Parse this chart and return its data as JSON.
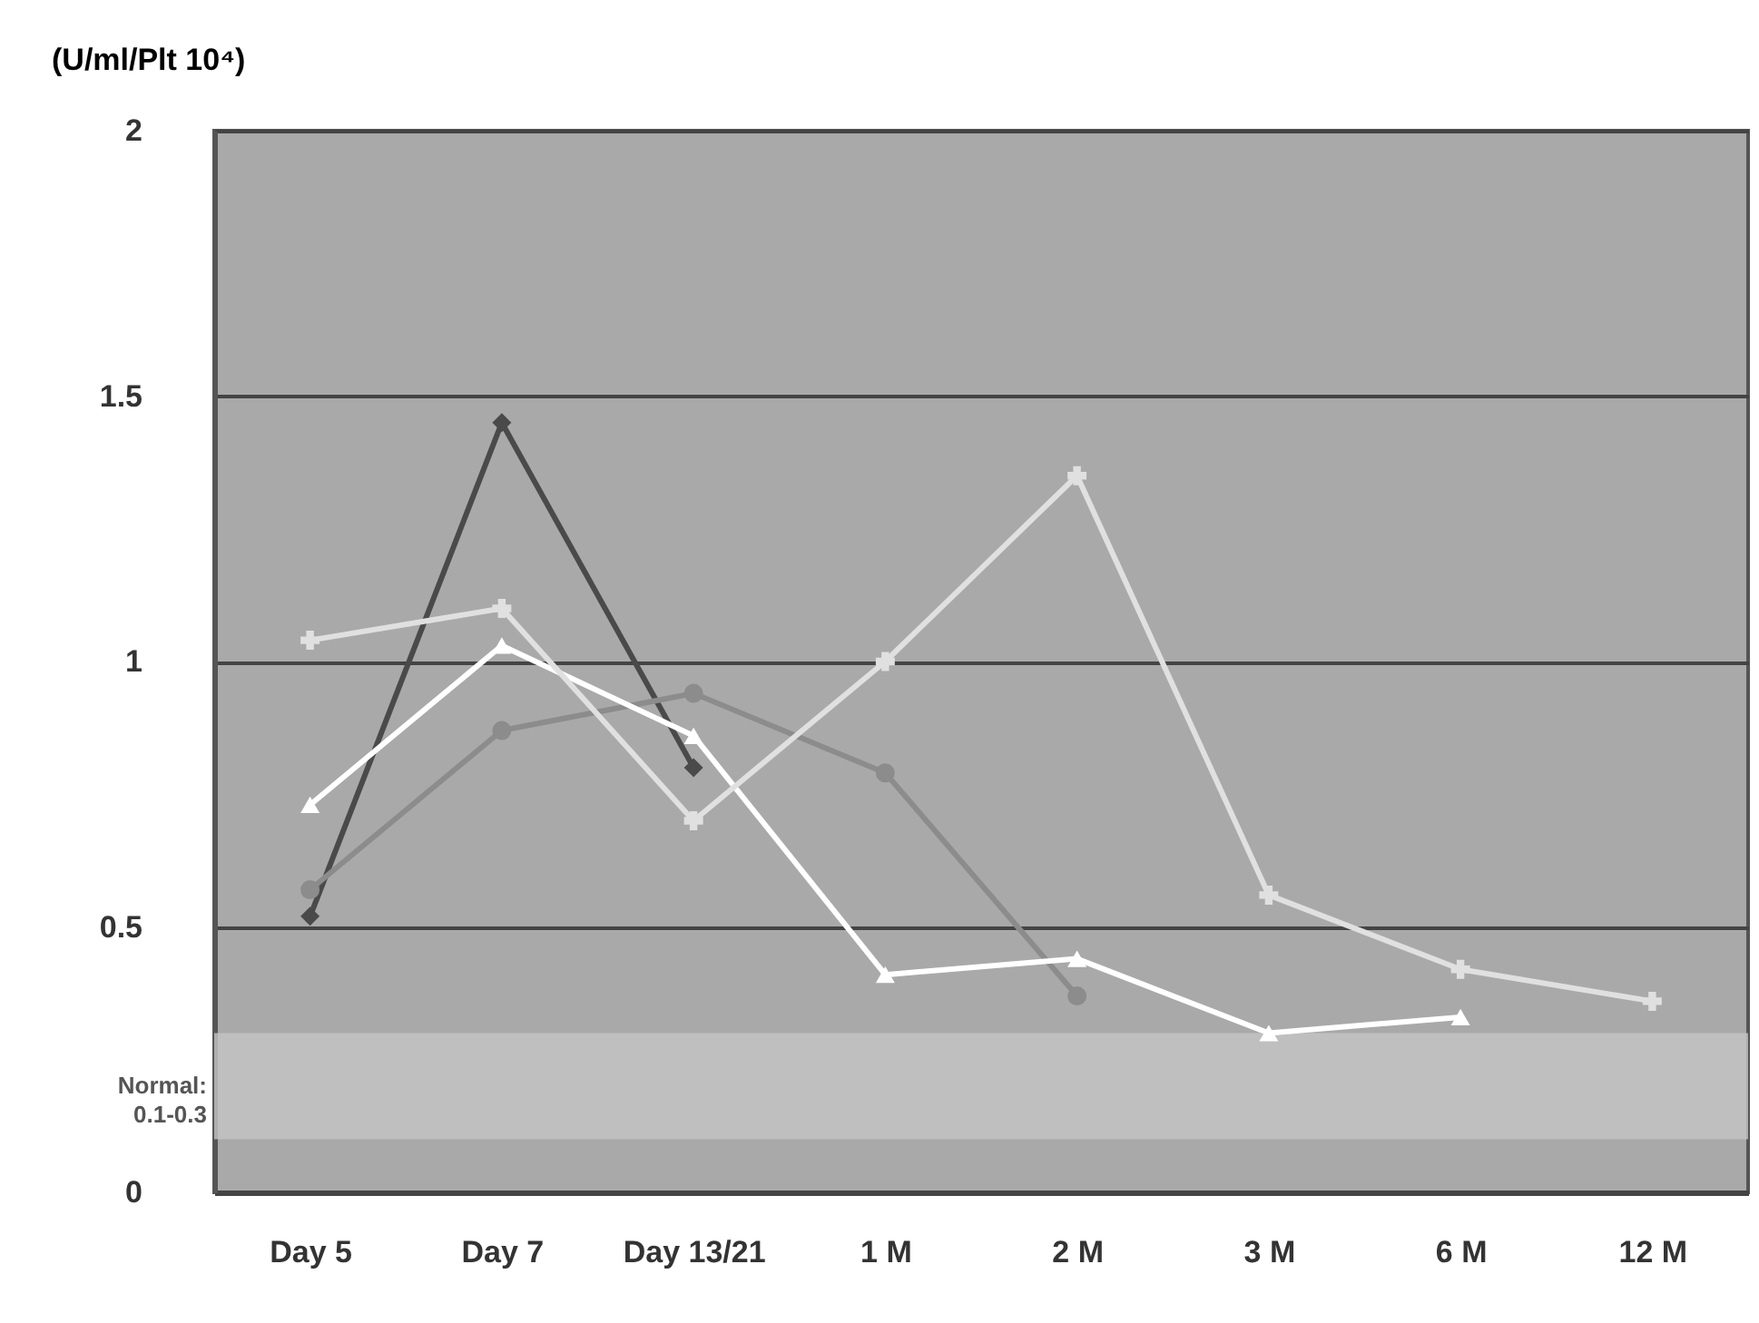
{
  "chart_data": {
    "type": "line",
    "ylabel": "(U/ml/Plt 10⁴)",
    "categories": [
      "Day 5",
      "Day 7",
      "Day 13/21",
      "1 M",
      "2 M",
      "3 M",
      "6 M",
      "12 M"
    ],
    "series": [
      {
        "color": "#4a4a4a",
        "marker": "diamond",
        "values": [
          0.52,
          1.45,
          0.8,
          null,
          null,
          null,
          null,
          null
        ]
      },
      {
        "color": "#8c8c8c",
        "marker": "circle",
        "values": [
          0.57,
          0.87,
          0.94,
          0.79,
          0.37,
          null,
          null,
          null
        ]
      },
      {
        "color": "#ffffff",
        "marker": "triangle",
        "values": [
          0.73,
          1.03,
          0.86,
          0.41,
          0.44,
          0.3,
          0.33,
          null
        ]
      },
      {
        "color": "#e0e0e0",
        "marker": "cross",
        "values": [
          1.04,
          1.1,
          0.7,
          1.0,
          1.35,
          0.56,
          0.42,
          0.36
        ]
      }
    ],
    "ylim": [
      0,
      2
    ],
    "yticks": [
      0,
      0.5,
      1,
      1.5,
      2
    ],
    "grid": "y",
    "bands": [
      {
        "axis": "y",
        "from": 0.1,
        "to": 0.3,
        "label": "Normal: 0.1-0.3",
        "color": "#c4c4c4"
      }
    ]
  }
}
